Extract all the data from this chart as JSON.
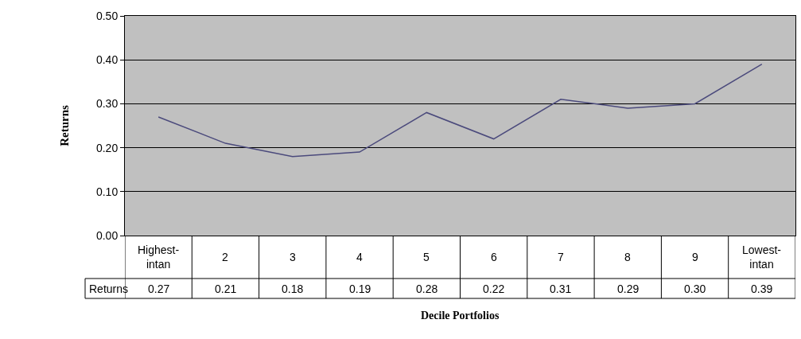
{
  "chart_data": {
    "type": "line",
    "xlabel": "Decile Portfolios",
    "ylabel": "Returns",
    "categories": [
      "Highest-intan",
      "2",
      "3",
      "4",
      "5",
      "6",
      "7",
      "8",
      "9",
      "Lowest-intan"
    ],
    "series": [
      {
        "name": "Returns",
        "color": "#4b4a7c",
        "values": [
          0.27,
          0.21,
          0.18,
          0.19,
          0.28,
          0.22,
          0.31,
          0.29,
          0.3,
          0.39
        ],
        "value_labels": [
          "0.27",
          "0.21",
          "0.18",
          "0.19",
          "0.28",
          "0.22",
          "0.31",
          "0.29",
          "0.30",
          "0.39"
        ]
      }
    ],
    "ylim": [
      0,
      0.5
    ],
    "yticks": [
      {
        "value": 0,
        "label": "0.00"
      },
      {
        "value": 0.1,
        "label": "0.10"
      },
      {
        "value": 0.2,
        "label": "0.20"
      },
      {
        "value": 0.3,
        "label": "0.30"
      },
      {
        "value": 0.4,
        "label": "0.40"
      },
      {
        "value": 0.5,
        "label": "0.50"
      }
    ],
    "grid": "y",
    "legend": false,
    "marker": "none",
    "line_style": "solid"
  }
}
